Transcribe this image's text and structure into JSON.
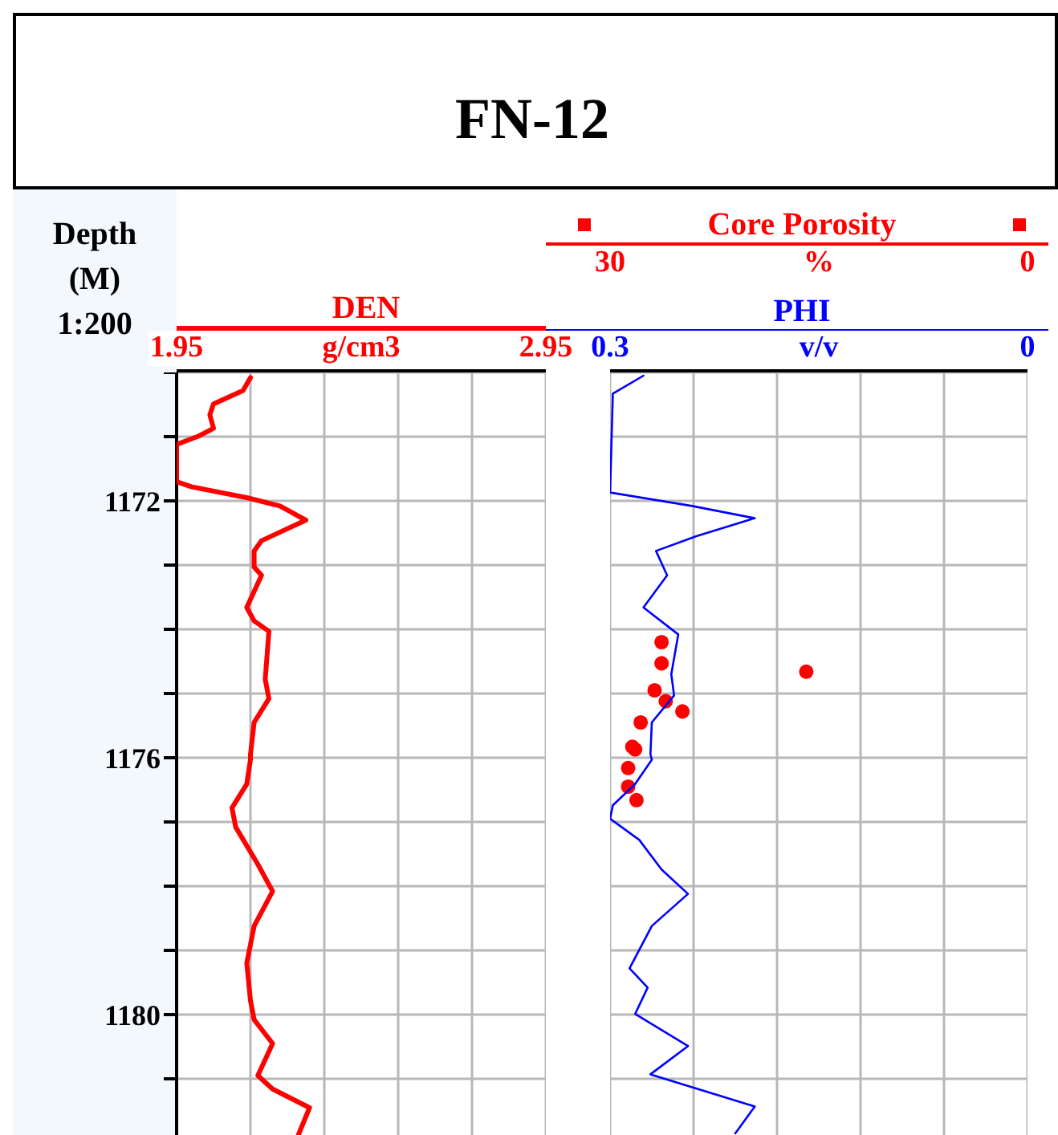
{
  "chart_data": [
    {
      "type": "line",
      "title": "FN-12",
      "ylabel": "Depth (M) 1:200",
      "xlabel": "g/cm3",
      "orientation": "horizontal",
      "xlim": [
        1.95,
        2.95
      ],
      "xticks": [
        1.95,
        {
          "value": 2.15,
          "label": null
        },
        {
          "value": 2.35,
          "label": null
        },
        {
          "value": 2.55,
          "label": null
        },
        {
          "value": 2.75,
          "label": null
        },
        2.95
      ],
      "ylim": [
        1182,
        1170
      ],
      "yticks": [
        {
          "value": 1170,
          "label": null
        },
        {
          "value": 1171,
          "label": null
        },
        1172,
        {
          "value": 1173,
          "label": null
        },
        {
          "value": 1174,
          "label": null
        },
        {
          "value": 1175,
          "label": null
        },
        1176,
        {
          "value": 1177,
          "label": null
        },
        {
          "value": 1178,
          "label": null
        },
        {
          "value": 1179,
          "label": null
        },
        1180,
        {
          "value": 1181,
          "label": null
        },
        {
          "value": 1182,
          "label": null
        }
      ],
      "grid": true,
      "legend": "top",
      "series": [
        {
          "name": "DEN",
          "color": "#ff0000",
          "marker": "none",
          "x": [
            1170.08,
            1170.28,
            1170.49,
            1170.66,
            1170.87,
            1170.99,
            1171.12,
            1171.7,
            1171.78,
            1171.95,
            1172.08,
            1172.3,
            1172.62,
            1172.78,
            1173.03,
            1173.16,
            1173.66,
            1173.87,
            1174.03,
            1174.78,
            1175.08,
            1175.45,
            1175.95,
            1176.03,
            1176.41,
            1176.78,
            1177.08,
            1177.66,
            1178.08,
            1178.62,
            1179.2,
            1179.78,
            1180.08,
            1180.45,
            1180.95,
            1181.16,
            1181.45,
            1181.87
          ],
          "values": [
            2.15,
            2.13,
            2.05,
            2.04,
            2.05,
            2.01,
            1.95,
            1.95,
            1.99,
            2.14,
            2.23,
            2.3,
            2.18,
            2.16,
            2.16,
            2.18,
            2.14,
            2.16,
            2.2,
            2.19,
            2.2,
            2.16,
            2.15,
            2.15,
            2.14,
            2.1,
            2.11,
            2.17,
            2.21,
            2.16,
            2.14,
            2.15,
            2.16,
            2.21,
            2.17,
            2.21,
            2.31,
            2.28
          ]
        }
      ]
    },
    {
      "type": "line",
      "xlabel": "v/v",
      "x2label": "%",
      "orientation": "horizontal",
      "xlim": [
        0.3,
        0
      ],
      "xticks": [
        0.3,
        {
          "value": 0.24,
          "label": null
        },
        {
          "value": 0.18,
          "label": null
        },
        {
          "value": 0.12,
          "label": null
        },
        {
          "value": 0.06,
          "label": null
        },
        0
      ],
      "x2lim": [
        30,
        0
      ],
      "x2ticks": [
        30,
        0
      ],
      "ylim": [
        1182,
        1170
      ],
      "yticks": [
        {
          "value": 1170,
          "label": null
        },
        {
          "value": 1171,
          "label": null
        },
        1172,
        {
          "value": 1173,
          "label": null
        },
        {
          "value": 1174,
          "label": null
        },
        {
          "value": 1175,
          "label": null
        },
        1176,
        {
          "value": 1177,
          "label": null
        },
        {
          "value": 1178,
          "label": null
        },
        {
          "value": 1179,
          "label": null
        },
        1180,
        {
          "value": 1181,
          "label": null
        },
        {
          "value": 1182,
          "label": null
        }
      ],
      "tick_labels": "x",
      "grid": true,
      "legend": "top",
      "series": [
        {
          "name": "Core Porosity",
          "type": "scatter",
          "axis": "x2",
          "color": "#ff0000",
          "marker": "circle",
          "x": [
            1174.2,
            1174.53,
            1174.66,
            1174.95,
            1175.12,
            1175.28,
            1175.45,
            1175.83,
            1175.87,
            1176.16,
            1176.45,
            1176.66
          ],
          "values": [
            26.3,
            26.3,
            15.9,
            26.8,
            26.0,
            24.8,
            27.8,
            28.4,
            28.2,
            28.7,
            28.7,
            28.1
          ]
        },
        {
          "name": "PHI",
          "color": "#0000ff",
          "marker": "none",
          "x": [
            1170.05,
            1170.33,
            1171.87,
            1172.08,
            1172.27,
            1172.55,
            1172.78,
            1173.16,
            1173.66,
            1174.08,
            1174.7,
            1175.03,
            1175.45,
            1175.95,
            1176.03,
            1176.41,
            1176.74,
            1176.95,
            1177.28,
            1177.74,
            1178.12,
            1178.62,
            1179.28,
            1179.58,
            1179.99,
            1180.49,
            1180.93,
            1181.43,
            1181.85
          ],
          "values": [
            0.276,
            0.298,
            0.3,
            0.241,
            0.196,
            0.238,
            0.267,
            0.259,
            0.276,
            0.251,
            0.256,
            0.254,
            0.27,
            0.271,
            0.27,
            0.282,
            0.298,
            0.3,
            0.279,
            0.263,
            0.244,
            0.27,
            0.286,
            0.273,
            0.282,
            0.244,
            0.271,
            0.196,
            0.21
          ]
        }
      ]
    }
  ]
}
